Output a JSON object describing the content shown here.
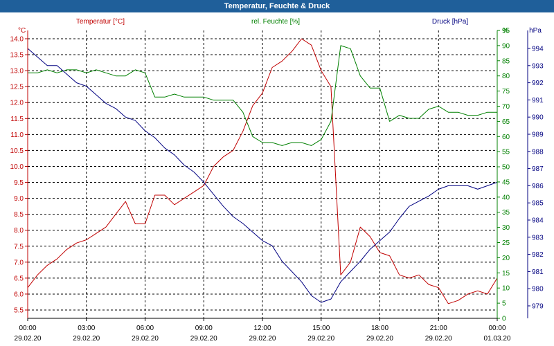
{
  "title": "Temperatur, Feuchte & Druck",
  "chart_data": {
    "type": "line",
    "title": "Temperatur, Feuchte & Druck",
    "grid": true,
    "axes": {
      "temperature": {
        "label": "Temperatur [°C]",
        "unit": "°C",
        "min": 5.5,
        "max": 14.0,
        "ticks": [
          "14.0",
          "13.5",
          "13.0",
          "12.5",
          "12.0",
          "11.5",
          "11.0",
          "10.5",
          "10.0",
          "9.5",
          "9.0",
          "8.5",
          "8.0",
          "7.5",
          "7.0",
          "6.5",
          "6.0",
          "5.5"
        ],
        "color": "#c00000"
      },
      "humidity": {
        "label": "rel. Feuchte [%]",
        "unit": "%",
        "min": 0,
        "max": 95,
        "ticks": [
          "95",
          "90",
          "85",
          "80",
          "75",
          "70",
          "65",
          "60",
          "55",
          "50",
          "45",
          "40",
          "35",
          "30",
          "25",
          "20",
          "15",
          "10",
          "5",
          "0"
        ],
        "color": "#008000"
      },
      "pressure": {
        "label": "Druck [hPa]",
        "unit": "hPa",
        "min": 979,
        "max": 994,
        "ticks": [
          "994",
          "993",
          "992",
          "991",
          "990",
          "989",
          "988",
          "987",
          "986",
          "985",
          "984",
          "983",
          "982",
          "981",
          "980",
          "979"
        ],
        "color": "#000080"
      }
    },
    "x_ticks": [
      {
        "time": "00:00",
        "date": "29.02.20"
      },
      {
        "time": "03:00",
        "date": "29.02.20"
      },
      {
        "time": "06:00",
        "date": "29.02.20"
      },
      {
        "time": "09:00",
        "date": "29.02.20"
      },
      {
        "time": "12:00",
        "date": "29.02.20"
      },
      {
        "time": "15:00",
        "date": "29.02.20"
      },
      {
        "time": "18:00",
        "date": "29.02.20"
      },
      {
        "time": "21:00",
        "date": "29.02.20"
      },
      {
        "time": "00:00",
        "date": "01.03.20"
      }
    ],
    "x_hours": [
      0,
      0.5,
      1,
      1.5,
      2,
      2.5,
      3,
      3.5,
      4,
      4.5,
      5,
      5.5,
      6,
      6.5,
      7,
      7.5,
      8,
      8.5,
      9,
      9.5,
      10,
      10.5,
      11,
      11.5,
      12,
      12.5,
      13,
      13.5,
      14,
      14.5,
      15,
      15.5,
      16,
      16.5,
      17,
      17.5,
      18,
      18.5,
      19,
      19.5,
      20,
      20.5,
      21,
      21.5,
      22,
      22.5,
      23,
      23.5,
      24
    ],
    "series": [
      {
        "name": "Temperatur [°C]",
        "axis": "temperature",
        "color": "#c00000",
        "values": [
          6.2,
          6.6,
          6.9,
          7.1,
          7.4,
          7.6,
          7.7,
          7.9,
          8.1,
          8.5,
          8.9,
          8.2,
          8.2,
          9.1,
          9.1,
          8.8,
          9.0,
          9.2,
          9.4,
          10.0,
          10.3,
          10.5,
          11.1,
          11.9,
          12.3,
          13.1,
          13.3,
          13.6,
          14.0,
          13.8,
          13.0,
          12.5,
          6.6,
          7.0,
          8.1,
          7.8,
          7.3,
          7.2,
          6.6,
          6.5,
          6.6,
          6.3,
          6.2,
          5.7,
          5.8,
          6.0,
          6.1,
          6.0,
          6.5
        ]
      },
      {
        "name": "rel. Feuchte [%]",
        "axis": "humidity",
        "color": "#008000",
        "values": [
          81,
          81,
          82,
          81,
          82,
          82,
          81,
          82,
          81,
          80,
          80,
          82,
          81,
          73,
          73,
          74,
          73,
          73,
          73,
          72,
          72,
          72,
          68,
          60,
          58,
          58,
          57,
          58,
          58,
          57,
          59,
          65,
          90,
          89,
          80,
          76,
          76,
          65,
          67,
          66,
          66,
          69,
          70,
          68,
          68,
          67,
          67,
          68,
          68
        ]
      },
      {
        "name": "Druck [hPa]",
        "axis": "pressure",
        "color": "#000080",
        "values": [
          994.0,
          993.5,
          993.0,
          993.0,
          992.5,
          992.0,
          991.8,
          991.3,
          990.8,
          990.5,
          990.0,
          989.8,
          989.2,
          988.8,
          988.2,
          987.8,
          987.2,
          986.8,
          986.2,
          985.5,
          984.8,
          984.2,
          983.8,
          983.3,
          982.8,
          982.5,
          981.6,
          981.0,
          980.4,
          979.6,
          979.2,
          979.4,
          980.4,
          981.0,
          981.6,
          982.3,
          982.8,
          983.3,
          984.1,
          984.8,
          985.1,
          985.4,
          985.8,
          986.0,
          986.0,
          986.0,
          985.8,
          986.0,
          986.2
        ]
      }
    ]
  }
}
